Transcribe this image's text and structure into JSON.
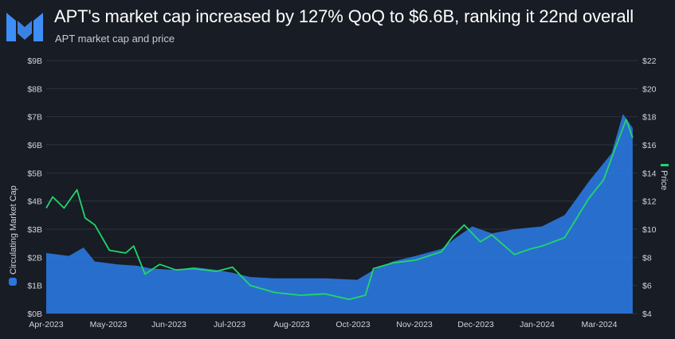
{
  "header": {
    "title": "APT's market cap increased by 127% QoQ to $6.6B, ranking it 22nd overall",
    "subtitle": "APT market cap and price"
  },
  "colors": {
    "background": "#181c24",
    "market_cap_fill": "#2a76dc",
    "price_line": "#22d66a",
    "logo": "#3e8ef7"
  },
  "chart_data": {
    "type": "area",
    "x_tick_labels": [
      "Apr-2023",
      "May-2023",
      "Jun-2023",
      "Jul-2023",
      "Aug-2023",
      "Oct-2023",
      "Nov-2023",
      "Dec-2023",
      "Jan-2024",
      "Mar-2024"
    ],
    "ylabel_left": "Circulating Market Cap",
    "ylabel_right": "Price",
    "ylim_left": [
      0,
      9
    ],
    "ylim_right": [
      4,
      22
    ],
    "left_tick_labels": [
      "$0B",
      "$1B",
      "$2B",
      "$3B",
      "$4B",
      "$5B",
      "$6B",
      "$7B",
      "$8B",
      "$9B"
    ],
    "right_tick_labels": [
      "$4",
      "$6",
      "$8",
      "$10",
      "$12",
      "$14",
      "$16",
      "$18",
      "$20",
      "$22"
    ],
    "grid": true,
    "legend": "axis-labels",
    "series": [
      {
        "name": "Circulating Market Cap",
        "axis": "left",
        "unit": "$B",
        "x": [
          "2023-04-01",
          "2023-04-15",
          "2023-04-24",
          "2023-05-01",
          "2023-05-15",
          "2023-05-27",
          "2023-06-05",
          "2023-06-20",
          "2023-07-01",
          "2023-07-15",
          "2023-07-25",
          "2023-08-05",
          "2023-08-20",
          "2023-09-05",
          "2023-09-20",
          "2023-10-10",
          "2023-10-20",
          "2023-11-01",
          "2023-11-15",
          "2023-12-01",
          "2023-12-10",
          "2023-12-20",
          "2024-01-01",
          "2024-01-15",
          "2024-02-01",
          "2024-02-15",
          "2024-03-01",
          "2024-03-15",
          "2024-03-22",
          "2024-03-28"
        ],
        "values": [
          2.15,
          2.05,
          2.35,
          1.85,
          1.75,
          1.7,
          1.6,
          1.55,
          1.65,
          1.55,
          1.45,
          1.3,
          1.25,
          1.25,
          1.25,
          1.2,
          1.55,
          1.85,
          2.05,
          2.3,
          2.7,
          3.1,
          2.85,
          3.0,
          3.1,
          3.5,
          4.7,
          5.7,
          7.1,
          6.6
        ]
      },
      {
        "name": "Price",
        "axis": "right",
        "unit": "$",
        "x": [
          "2023-04-01",
          "2023-04-05",
          "2023-04-12",
          "2023-04-20",
          "2023-04-25",
          "2023-05-01",
          "2023-05-10",
          "2023-05-20",
          "2023-05-25",
          "2023-06-01",
          "2023-06-10",
          "2023-06-20",
          "2023-07-01",
          "2023-07-15",
          "2023-07-25",
          "2023-08-05",
          "2023-08-20",
          "2023-09-05",
          "2023-09-20",
          "2023-10-05",
          "2023-10-15",
          "2023-10-20",
          "2023-11-01",
          "2023-11-15",
          "2023-12-01",
          "2023-12-08",
          "2023-12-15",
          "2023-12-25",
          "2024-01-01",
          "2024-01-15",
          "2024-01-25",
          "2024-02-01",
          "2024-02-15",
          "2024-03-01",
          "2024-03-10",
          "2024-03-18",
          "2024-03-24",
          "2024-03-28"
        ],
        "values": [
          11.5,
          12.3,
          11.5,
          12.8,
          10.8,
          10.3,
          8.5,
          8.3,
          8.8,
          6.8,
          7.5,
          7.1,
          7.2,
          7.0,
          7.3,
          6.0,
          5.5,
          5.3,
          5.4,
          5.0,
          5.3,
          7.2,
          7.6,
          7.8,
          8.4,
          9.5,
          10.3,
          9.1,
          9.6,
          8.2,
          8.6,
          8.8,
          9.4,
          12.2,
          13.5,
          16.0,
          17.8,
          16.5
        ]
      }
    ]
  }
}
